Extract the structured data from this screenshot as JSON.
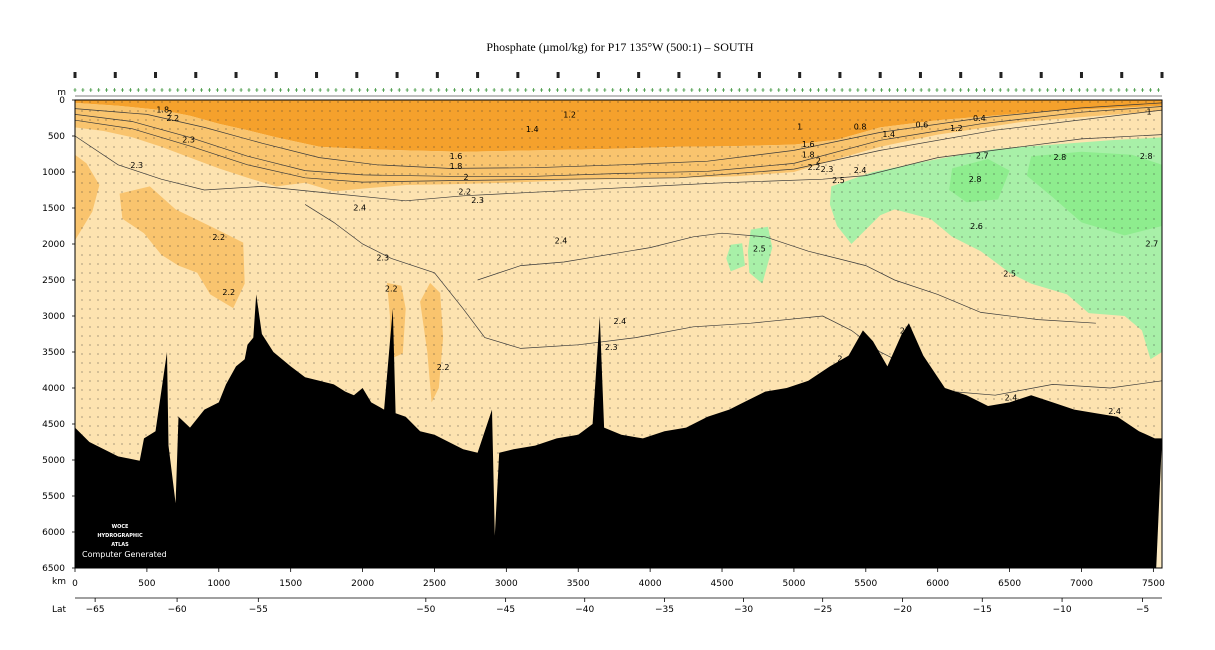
{
  "chart_data": {
    "type": "heatmap",
    "title": "Phosphate (µmol/kg) for P17 135°W (500:1) – SOUTH",
    "depth_unit": "m",
    "distance_unit": "km",
    "lat_label": "Lat",
    "ylim": [
      0,
      6500
    ],
    "xlim": [
      0,
      7560
    ],
    "depth_ticks": [
      "0",
      "500",
      "1000",
      "1500",
      "2000",
      "2500",
      "3000",
      "3500",
      "4000",
      "4500",
      "5000",
      "5500",
      "6000",
      "6500"
    ],
    "distance_ticks": [
      "0",
      "500",
      "1000",
      "1500",
      "2000",
      "2500",
      "3000",
      "3500",
      "4000",
      "4500",
      "5000",
      "5500",
      "6000",
      "6500",
      "7000",
      "7500"
    ],
    "lat_ticks": [
      {
        "km": 140,
        "label": "−65"
      },
      {
        "km": 710,
        "label": "−60"
      },
      {
        "km": 1275,
        "label": "−55"
      },
      {
        "km": 2440,
        "label": "−50"
      },
      {
        "km": 2995,
        "label": "−45"
      },
      {
        "km": 3545,
        "label": "−40"
      },
      {
        "km": 4100,
        "label": "−35"
      },
      {
        "km": 4650,
        "label": "−30"
      },
      {
        "km": 5200,
        "label": "−25"
      },
      {
        "km": 5755,
        "label": "−20"
      },
      {
        "km": 6310,
        "label": "−15"
      },
      {
        "km": 6865,
        "label": "−10"
      },
      {
        "km": 7425,
        "label": "−5"
      }
    ],
    "colors": {
      "deep_orange": "#f5a12c",
      "orange": "#f9c46e",
      "light_orange": "#fde3b0",
      "pale": "#fdebc4",
      "green": "#a8f0a8",
      "bright_green": "#8eed8e",
      "seafloor": "#000000"
    },
    "contour_labels": [
      {
        "v": "1.8",
        "km": 610,
        "d": 130
      },
      {
        "v": "2",
        "km": 660,
        "d": 180
      },
      {
        "v": "2.2",
        "km": 680,
        "d": 250
      },
      {
        "v": "2.3",
        "km": 790,
        "d": 550
      },
      {
        "v": "2.3",
        "km": 430,
        "d": 900
      },
      {
        "v": "1.2",
        "km": 3440,
        "d": 200
      },
      {
        "v": "1.4",
        "km": 3180,
        "d": 400
      },
      {
        "v": "1.6",
        "km": 2650,
        "d": 780
      },
      {
        "v": "1.8",
        "km": 2650,
        "d": 920
      },
      {
        "v": "2",
        "km": 2720,
        "d": 1070
      },
      {
        "v": "2.2",
        "km": 2710,
        "d": 1270
      },
      {
        "v": "2.3",
        "km": 2800,
        "d": 1390
      },
      {
        "v": "2.4",
        "km": 1980,
        "d": 1490
      },
      {
        "v": "2.2",
        "km": 1000,
        "d": 1900
      },
      {
        "v": "2.2",
        "km": 1070,
        "d": 2670
      },
      {
        "v": "2.3",
        "km": 2140,
        "d": 2190
      },
      {
        "v": "2.2",
        "km": 2200,
        "d": 2620
      },
      {
        "v": "2.2",
        "km": 2560,
        "d": 3710
      },
      {
        "v": "2.4",
        "km": 3380,
        "d": 1950
      },
      {
        "v": "2.4",
        "km": 3790,
        "d": 3070
      },
      {
        "v": "2.3",
        "km": 3730,
        "d": 3430
      },
      {
        "v": "2.5",
        "km": 4760,
        "d": 2060
      },
      {
        "v": "1",
        "km": 5040,
        "d": 370
      },
      {
        "v": "0.8",
        "km": 5460,
        "d": 370
      },
      {
        "v": "1.4",
        "km": 5660,
        "d": 470
      },
      {
        "v": "0.6",
        "km": 5890,
        "d": 340
      },
      {
        "v": "1.2",
        "km": 6130,
        "d": 390
      },
      {
        "v": "0.4",
        "km": 6290,
        "d": 250
      },
      {
        "v": "1.6",
        "km": 5100,
        "d": 610
      },
      {
        "v": "1.8",
        "km": 5100,
        "d": 760
      },
      {
        "v": "2",
        "km": 5170,
        "d": 840
      },
      {
        "v": "2.2",
        "km": 5140,
        "d": 930
      },
      {
        "v": "2.3",
        "km": 5230,
        "d": 960
      },
      {
        "v": "2.4",
        "km": 5460,
        "d": 970
      },
      {
        "v": "2.5",
        "km": 5310,
        "d": 1110
      },
      {
        "v": "2.7",
        "km": 6310,
        "d": 770
      },
      {
        "v": "2.8",
        "km": 6260,
        "d": 1100
      },
      {
        "v": "2.8",
        "km": 6850,
        "d": 790
      },
      {
        "v": "2.8",
        "km": 7450,
        "d": 780
      },
      {
        "v": "2.6",
        "km": 6270,
        "d": 1750
      },
      {
        "v": "2.7",
        "km": 7490,
        "d": 1990
      },
      {
        "v": "2.5",
        "km": 6500,
        "d": 2410
      },
      {
        "v": "2.4",
        "km": 5780,
        "d": 3200
      },
      {
        "v": "2",
        "km": 5320,
        "d": 3590
      },
      {
        "v": "2.4",
        "km": 6510,
        "d": 4130
      },
      {
        "v": "2.4",
        "km": 7230,
        "d": 4320
      },
      {
        "v": "1",
        "km": 7470,
        "d": 160
      }
    ],
    "watermark": [
      "WOCE",
      "HYDROGRAPHIC",
      "ATLAS"
    ],
    "watermark_note": "Computer Generated"
  }
}
